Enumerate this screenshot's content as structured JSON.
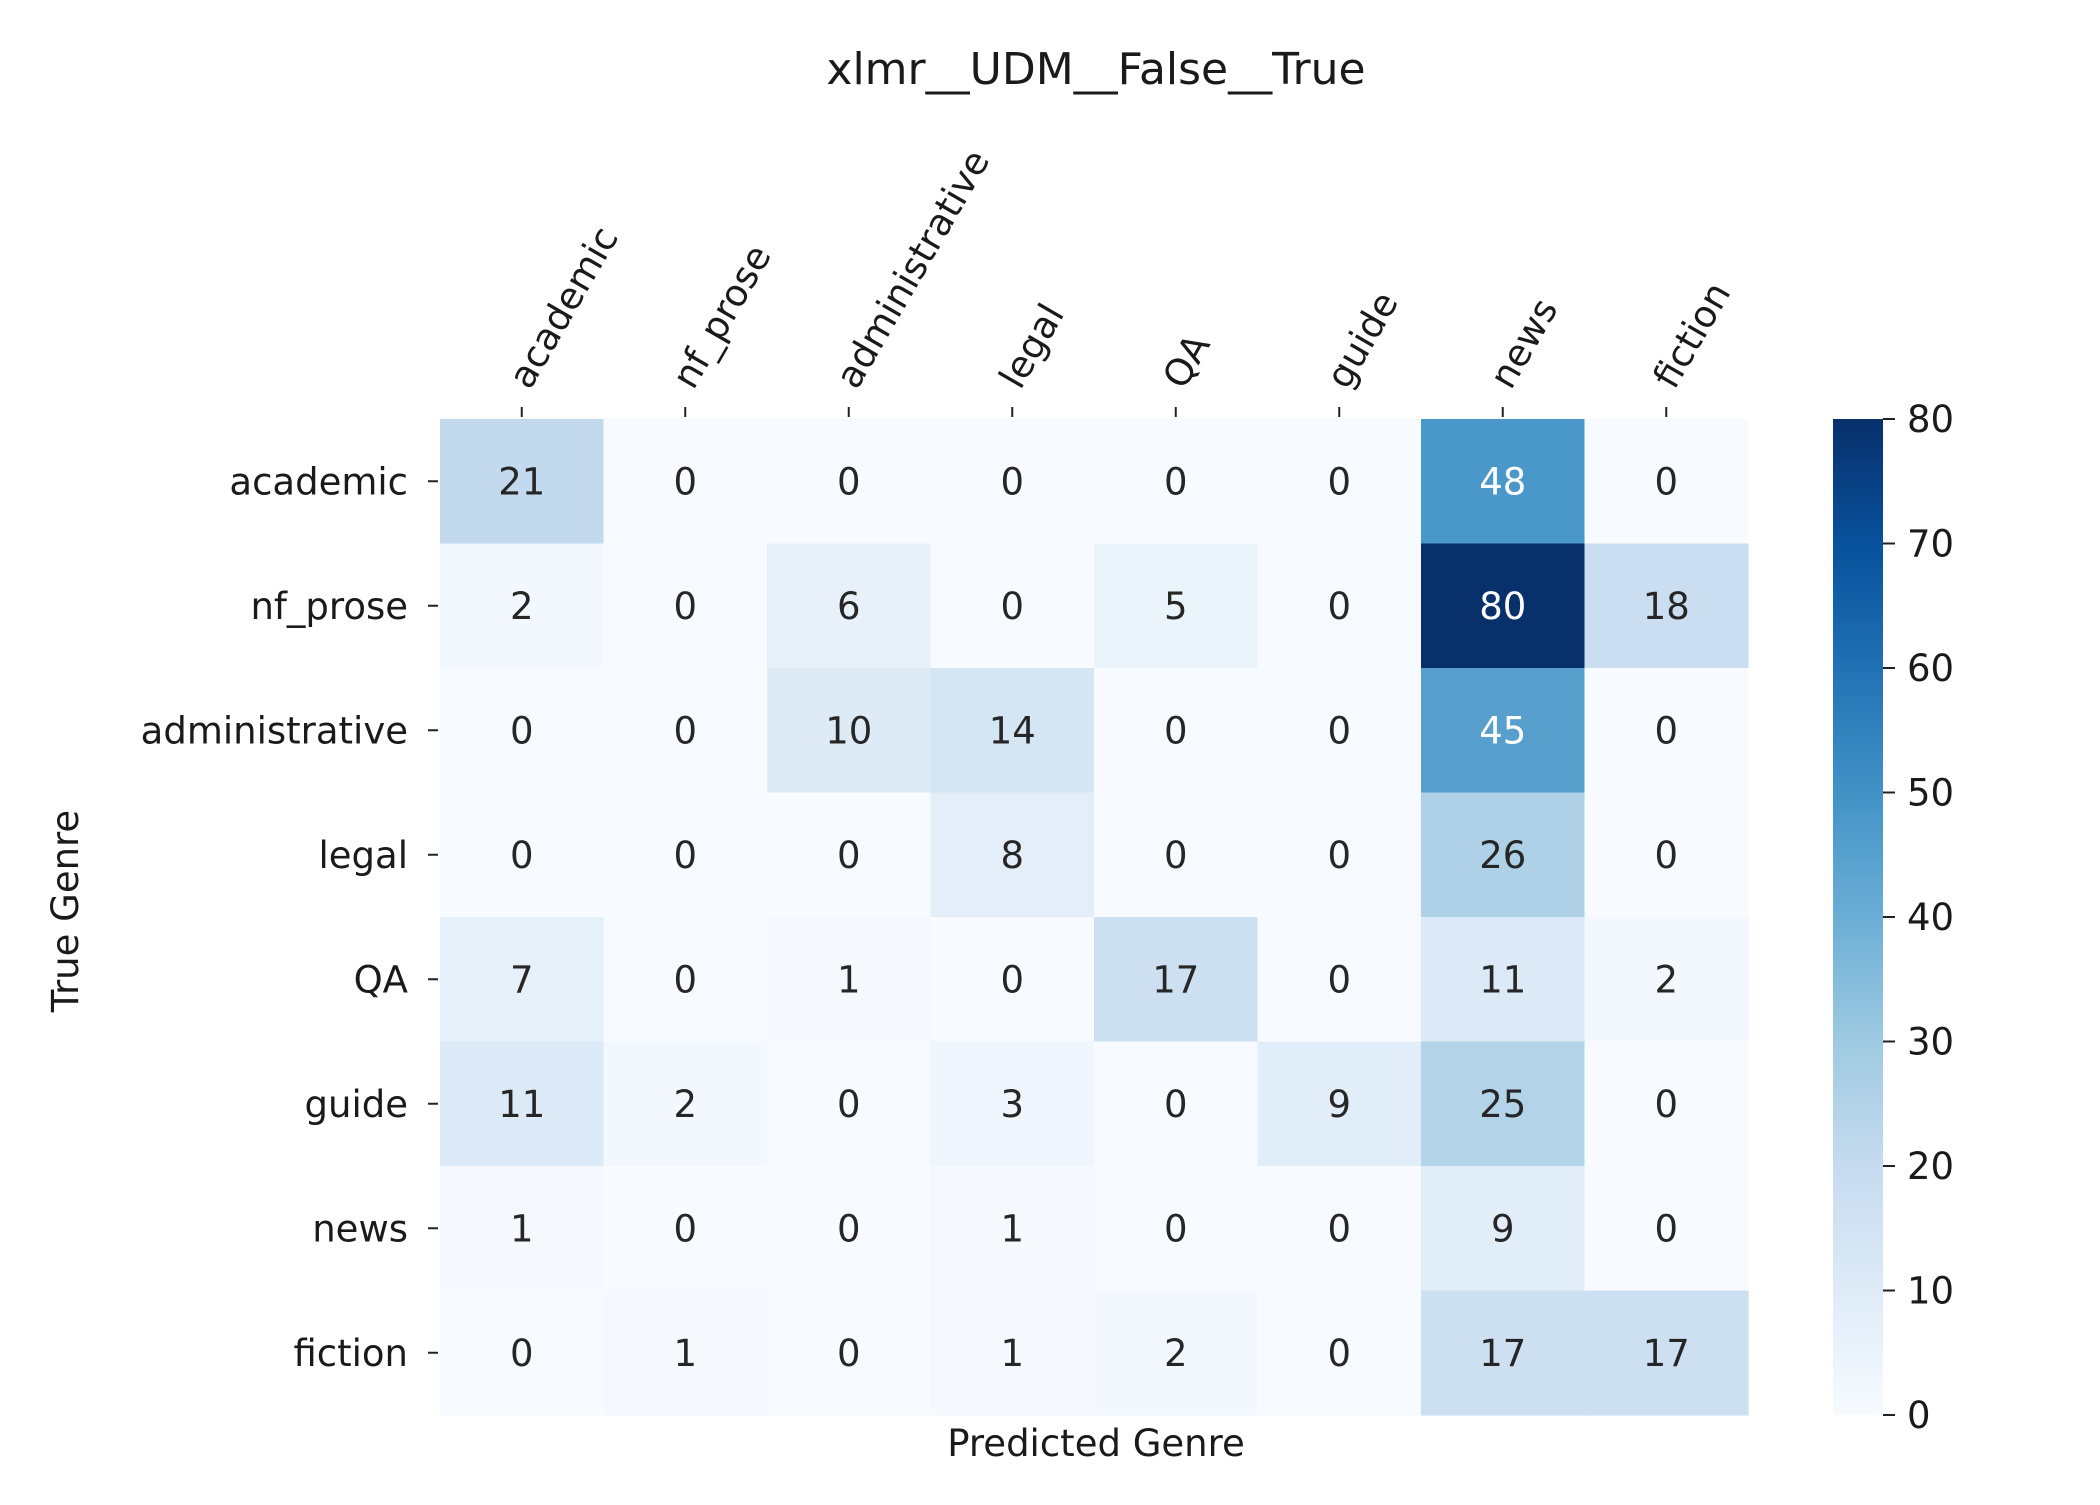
{
  "chart_data": {
    "type": "heatmap",
    "title": "xlmr__UDM__False__True",
    "xlabel": "Predicted Genre",
    "ylabel": "True Genre",
    "x_categories": [
      "academic",
      "nf_prose",
      "administrative",
      "legal",
      "QA",
      "guide",
      "news",
      "fiction"
    ],
    "y_categories": [
      "academic",
      "nf_prose",
      "administrative",
      "legal",
      "QA",
      "guide",
      "news",
      "fiction"
    ],
    "values": [
      [
        21,
        0,
        0,
        0,
        0,
        0,
        48,
        0
      ],
      [
        2,
        0,
        6,
        0,
        5,
        0,
        80,
        18
      ],
      [
        0,
        0,
        10,
        14,
        0,
        0,
        45,
        0
      ],
      [
        0,
        0,
        0,
        8,
        0,
        0,
        26,
        0
      ],
      [
        7,
        0,
        1,
        0,
        17,
        0,
        11,
        2
      ],
      [
        11,
        2,
        0,
        3,
        0,
        9,
        25,
        0
      ],
      [
        1,
        0,
        0,
        1,
        0,
        0,
        9,
        0
      ],
      [
        0,
        1,
        0,
        1,
        2,
        0,
        17,
        17
      ]
    ],
    "colorbar": {
      "min": 0,
      "max": 80,
      "ticks": [
        0,
        10,
        20,
        30,
        40,
        50,
        60,
        70,
        80
      ],
      "colormap": "Blues"
    },
    "x_tick_position": "top",
    "annotated": true,
    "grid": false
  }
}
